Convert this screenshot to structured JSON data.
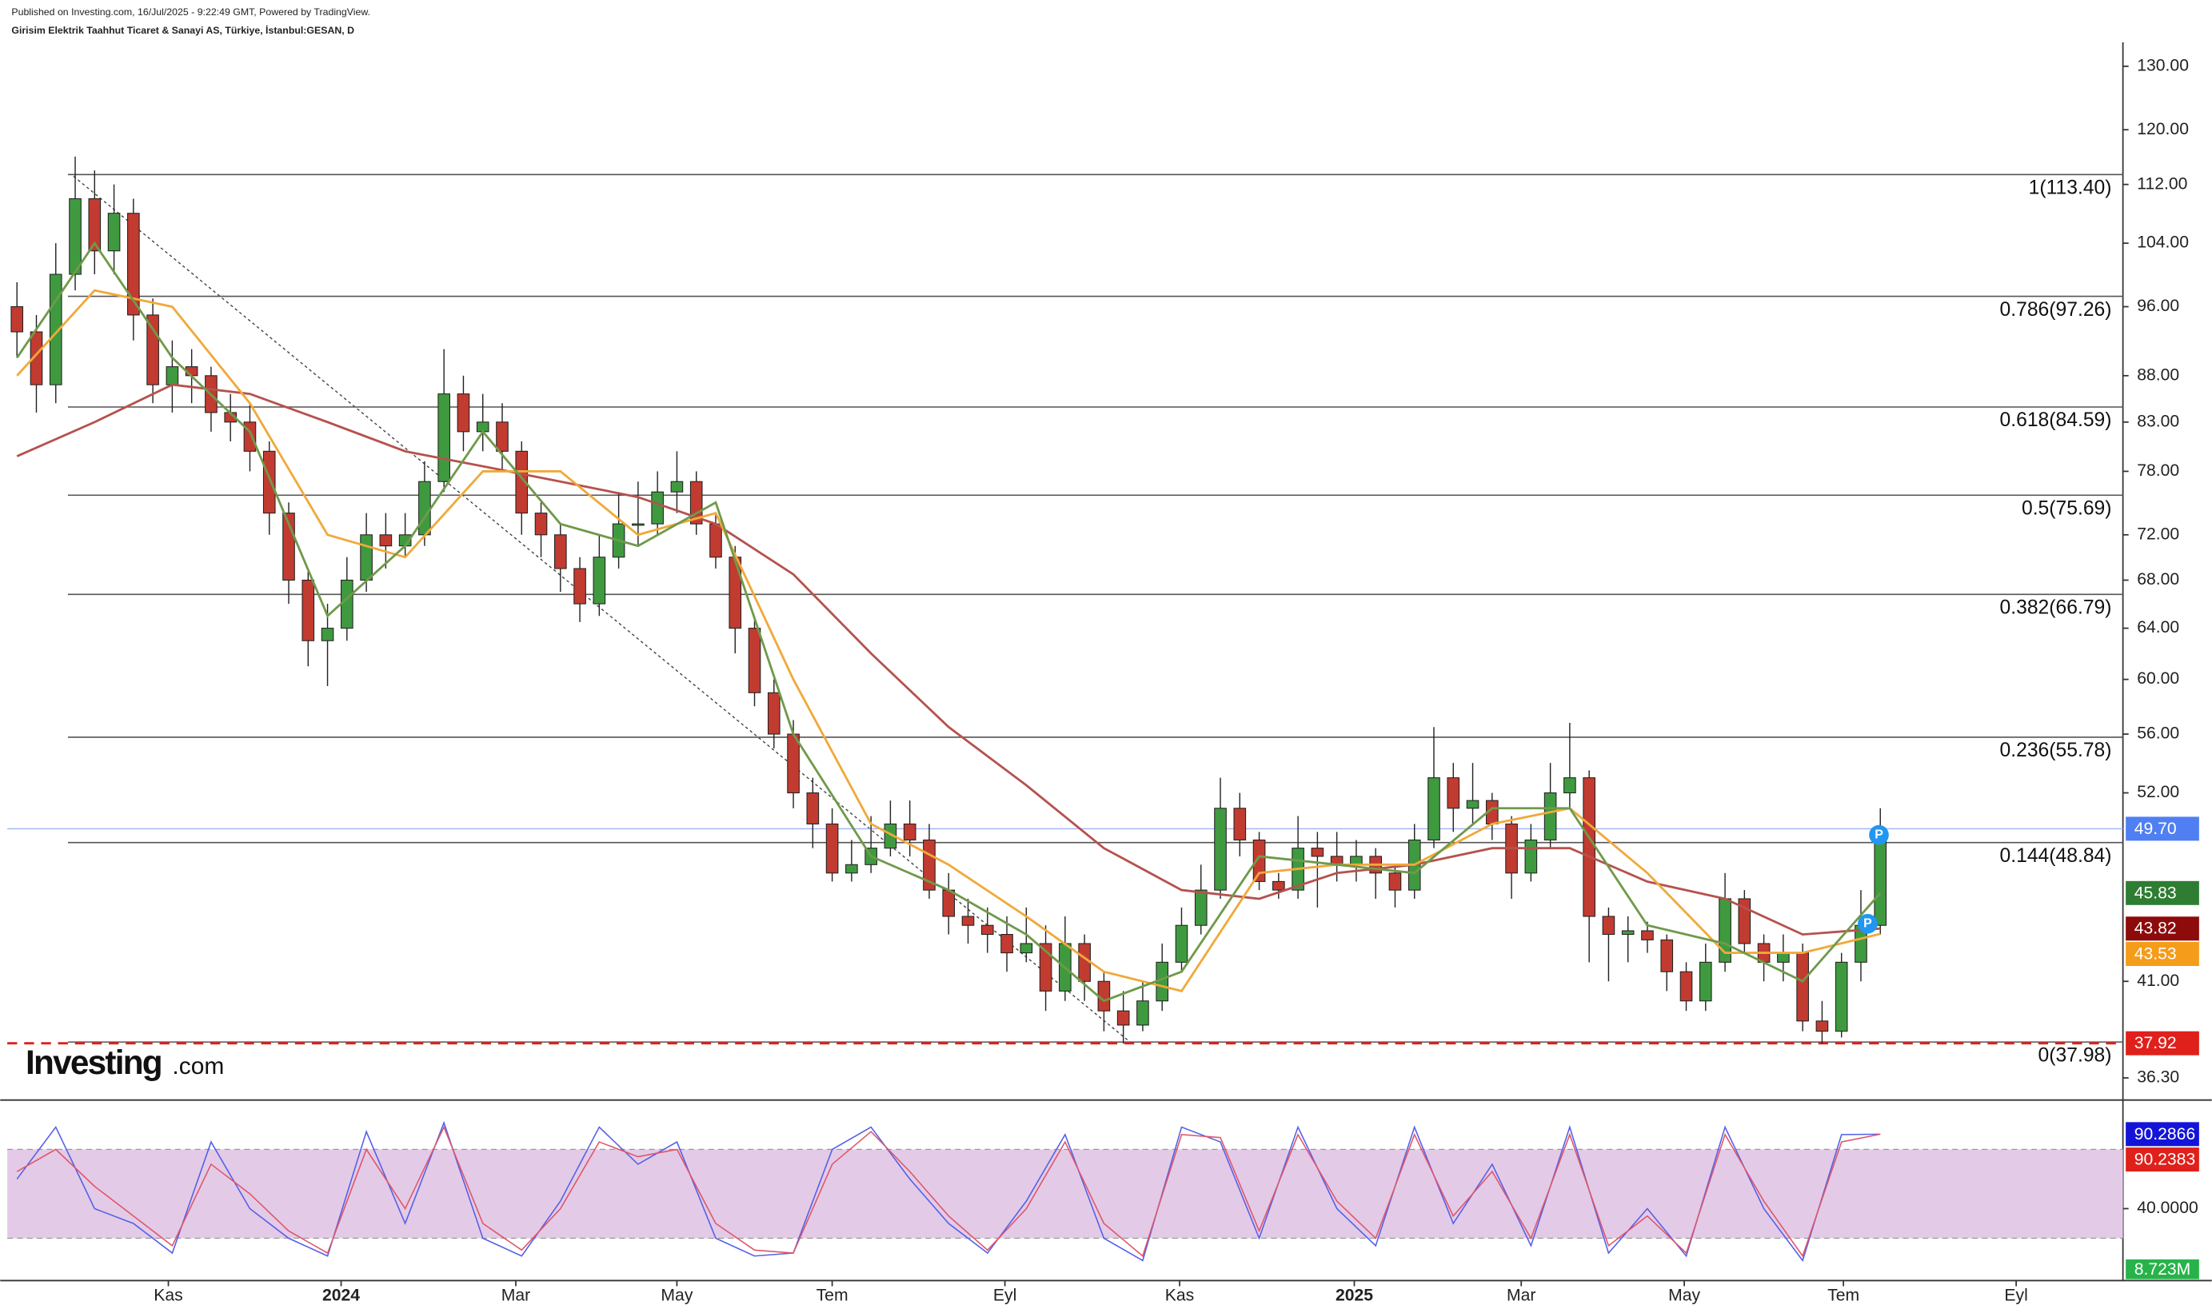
{
  "header": {
    "published": "Published on Investing.com, 16/Jul/2025 - 9:22:49 GMT, Powered by TradingView.",
    "instrument": "Girisim Elektrik Taahhut Ticaret & Sanayi AS, Türkiye, İstanbul:GESAN, D"
  },
  "logo": {
    "name": "Investing",
    "suffix": ".com"
  },
  "markers": [
    {
      "label": "P"
    },
    {
      "label": "P"
    }
  ],
  "chart_data": {
    "type": "candlestick",
    "log_scale": true,
    "xlim": [
      0,
      109
    ],
    "xticks": [
      {
        "value": 8.3,
        "label": "Kas"
      },
      {
        "value": 17.2,
        "label": "2024"
      },
      {
        "value": 26.2,
        "label": "Mar"
      },
      {
        "value": 34.5,
        "label": "May"
      },
      {
        "value": 42.5,
        "label": "Tem"
      },
      {
        "value": 51.4,
        "label": "Eyl"
      },
      {
        "value": 60.4,
        "label": "Kas"
      },
      {
        "value": 69.4,
        "label": "2025"
      },
      {
        "value": 78.0,
        "label": "Mar"
      },
      {
        "value": 86.4,
        "label": "May"
      },
      {
        "value": 94.6,
        "label": "Tem"
      },
      {
        "value": 103.5,
        "label": "Eyl"
      }
    ],
    "ylim": [
      35.3,
      132.8
    ],
    "yticks": [
      {
        "value": 130,
        "label": "130.00"
      },
      {
        "value": 120,
        "label": "120.00"
      },
      {
        "value": 112,
        "label": "112.00"
      },
      {
        "value": 104,
        "label": "104.00"
      },
      {
        "value": 96,
        "label": "96.00"
      },
      {
        "value": 88,
        "label": "88.00"
      },
      {
        "value": 83,
        "label": "83.00"
      },
      {
        "value": 78,
        "label": "78.00"
      },
      {
        "value": 72,
        "label": "72.00"
      },
      {
        "value": 68,
        "label": "68.00"
      },
      {
        "value": 64,
        "label": "64.00"
      },
      {
        "value": 60,
        "label": "60.00"
      },
      {
        "value": 56,
        "label": "56.00"
      },
      {
        "value": 52,
        "label": "52.00"
      },
      {
        "value": 41,
        "label": "41.00"
      },
      {
        "value": 36.3,
        "label": "36.30"
      }
    ],
    "up_color": "#3f9a3f",
    "down_color": "#c23b30",
    "open": [
      96,
      93,
      87,
      100,
      110,
      103,
      108,
      95,
      87,
      89,
      88,
      84,
      83,
      80,
      74,
      68,
      63,
      64,
      68,
      72,
      71,
      72,
      77,
      86,
      82,
      83,
      80,
      74,
      72,
      69,
      66,
      70,
      73,
      73,
      76,
      77,
      73,
      70,
      64,
      59,
      56,
      52,
      50,
      47,
      47.5,
      48.5,
      50,
      49,
      46,
      44.5,
      44,
      43.5,
      42.5,
      43,
      40.5,
      43,
      41,
      39.5,
      38.8,
      40,
      42,
      44,
      46,
      51,
      49,
      46.5,
      46,
      48.5,
      48,
      47.5,
      48,
      47,
      46,
      49,
      53,
      51,
      51.5,
      50,
      47,
      49,
      52,
      53,
      44.5,
      43.5,
      43.7,
      43.2,
      41.5,
      40,
      42,
      45.5,
      43,
      42,
      42.5,
      39,
      38.5,
      42,
      44
    ],
    "high": [
      99,
      95,
      104,
      116,
      114,
      112,
      110,
      97,
      92,
      91,
      89,
      86,
      85,
      81,
      75,
      69,
      66,
      70,
      74,
      74,
      74,
      79,
      91,
      88,
      86,
      85,
      81,
      75,
      73,
      70,
      72,
      76,
      77,
      78,
      80,
      78,
      74,
      71,
      65,
      60,
      57,
      53,
      51,
      49,
      50.5,
      51.5,
      51.5,
      50,
      47,
      45.5,
      45,
      44.5,
      45,
      44,
      44.5,
      43.5,
      41.5,
      40.5,
      41,
      43,
      45,
      47.5,
      53,
      52,
      49.5,
      47,
      50.5,
      49.5,
      49.5,
      49,
      48.5,
      47.5,
      50,
      56.5,
      54,
      54,
      52,
      50.5,
      50,
      54,
      56.8,
      53.5,
      45,
      44.5,
      44.2,
      43.5,
      42,
      43,
      47,
      46,
      43.5,
      43.5,
      43,
      40,
      42.5,
      46,
      51
    ],
    "low": [
      90,
      84,
      85,
      98,
      100,
      100,
      92,
      85,
      84,
      85,
      82,
      81,
      78,
      72,
      66,
      61,
      59.5,
      63,
      67,
      69,
      70,
      71,
      76,
      80,
      80,
      78,
      72,
      70,
      67,
      64.5,
      65,
      69,
      71,
      72,
      74,
      72,
      69,
      62,
      58,
      55,
      51,
      48.5,
      46.5,
      46.5,
      47,
      48,
      48,
      45.5,
      43.5,
      43,
      42.5,
      41.5,
      42,
      39.5,
      40,
      40,
      38.5,
      37.9,
      38.5,
      39.5,
      41.5,
      43.5,
      45.5,
      48,
      46,
      45.5,
      45.5,
      45,
      46.5,
      46.5,
      45.5,
      45,
      45.5,
      48.5,
      49.5,
      50,
      49,
      45.5,
      46.5,
      48.5,
      51,
      42,
      41,
      42,
      42.5,
      40.5,
      39.5,
      39.5,
      41.5,
      42.5,
      41,
      41,
      38.5,
      37.9,
      38.2,
      41,
      43.5
    ],
    "close": [
      93,
      87,
      100,
      110,
      103,
      108,
      95,
      87,
      89,
      88,
      84,
      83,
      80,
      74,
      68,
      63,
      64,
      68,
      72,
      71,
      72,
      77,
      86,
      82,
      83,
      80,
      74,
      72,
      69,
      66,
      70,
      73,
      73,
      76,
      77,
      73,
      70,
      64,
      59,
      56,
      52,
      50,
      47,
      47.5,
      48.5,
      50,
      49,
      46,
      44.5,
      44,
      43.5,
      42.5,
      43,
      40.5,
      43,
      41,
      39.5,
      38.8,
      40,
      42,
      44,
      46,
      51,
      49,
      46.5,
      46,
      48.5,
      48,
      47.5,
      48,
      47,
      46,
      49,
      53,
      51,
      51.5,
      50,
      47,
      49,
      52,
      53,
      44.5,
      43.5,
      43.7,
      43.2,
      41.5,
      40,
      42,
      45.5,
      43,
      42,
      42.5,
      39,
      38.5,
      42,
      44,
      49.7
    ],
    "overlays": [
      {
        "color": "#b5524d",
        "x": [
          0,
          4,
          8,
          12,
          16,
          20,
          24,
          28,
          32,
          36,
          40,
          44,
          48,
          52,
          56,
          60,
          64,
          68,
          72,
          76,
          80,
          84,
          88,
          92,
          96
        ],
        "values": [
          79.5,
          83,
          87,
          86,
          83,
          80,
          78.5,
          77,
          75.5,
          73,
          68.5,
          62,
          56.5,
          52.5,
          48.5,
          46,
          45.5,
          47,
          47.5,
          48.5,
          48.5,
          46.5,
          45.5,
          43.5,
          43.82
        ]
      },
      {
        "color": "#f0a93a",
        "x": [
          0,
          4,
          8,
          12,
          16,
          20,
          24,
          28,
          32,
          36,
          40,
          44,
          48,
          52,
          56,
          60,
          64,
          68,
          72,
          76,
          80,
          84,
          88,
          92,
          96
        ],
        "values": [
          88,
          98,
          96,
          85,
          72,
          70,
          78,
          78,
          72,
          74,
          60,
          50,
          47.5,
          44.5,
          41.5,
          40.5,
          47,
          47.5,
          47.5,
          50,
          51,
          47,
          42.5,
          42.5,
          43.53
        ]
      },
      {
        "color": "#6f9a4a",
        "x": [
          0,
          4,
          8,
          12,
          16,
          20,
          24,
          28,
          32,
          36,
          40,
          44,
          48,
          52,
          56,
          60,
          64,
          68,
          72,
          76,
          80,
          84,
          88,
          92,
          96
        ],
        "values": [
          90,
          104,
          90,
          82,
          65,
          71,
          82,
          73,
          71,
          75,
          56,
          48,
          46,
          43.5,
          40,
          41.5,
          48,
          47.5,
          47,
          51,
          51,
          44,
          43,
          41,
          45.83
        ]
      }
    ],
    "fib_levels": [
      {
        "value": 113.4,
        "label": "1(113.40)"
      },
      {
        "value": 97.26,
        "label": "0.786(97.26)"
      },
      {
        "value": 84.59,
        "label": "0.618(84.59)"
      },
      {
        "value": 75.69,
        "label": "0.5(75.69)"
      },
      {
        "value": 66.79,
        "label": "0.382(66.79)"
      },
      {
        "value": 55.78,
        "label": "0.236(55.78)"
      },
      {
        "value": 48.84,
        "label": "0.144(48.84)"
      },
      {
        "value": 37.98,
        "label": "0(37.98)"
      }
    ],
    "price_tags": [
      {
        "value": 49.7,
        "label": "49.70",
        "color": "#4f7ff2"
      },
      {
        "value": 45.83,
        "label": "45.83",
        "color": "#2e7d32"
      },
      {
        "value": 43.82,
        "label": "43.82",
        "color": "#8e0b0b"
      },
      {
        "value": 43.53,
        "label": "43.53",
        "color": "#f59c1a"
      },
      {
        "value": 37.92,
        "label": "37.92",
        "color": "#e0201b"
      }
    ],
    "last_price_line": 49.7,
    "support_line": 37.92,
    "stochastic": {
      "ylim": [
        -5.7,
        111.4
      ],
      "band": [
        20,
        80
      ],
      "yticks": [
        {
          "value": 40,
          "label": "40.0000"
        }
      ],
      "x": [
        0,
        2,
        4,
        6,
        8,
        10,
        12,
        14,
        16,
        18,
        20,
        22,
        24,
        26,
        28,
        30,
        32,
        34,
        36,
        38,
        40,
        42,
        44,
        46,
        48,
        50,
        52,
        54,
        56,
        58,
        60,
        62,
        64,
        66,
        68,
        70,
        72,
        74,
        76,
        78,
        80,
        82,
        84,
        86,
        88,
        90,
        92,
        94,
        96
      ],
      "series": [
        {
          "color": "#5560e8",
          "values": [
            60,
            95,
            40,
            30,
            10,
            85,
            40,
            20,
            8,
            92,
            30,
            98,
            20,
            8,
            45,
            95,
            70,
            85,
            20,
            8,
            10,
            80,
            95,
            60,
            30,
            10,
            45,
            90,
            20,
            5,
            95,
            85,
            20,
            95,
            40,
            15,
            95,
            30,
            70,
            15,
            95,
            10,
            40,
            8,
            95,
            40,
            5,
            90,
            90.2866
          ]
        },
        {
          "color": "#e0566a",
          "values": [
            65,
            80,
            55,
            35,
            15,
            70,
            50,
            25,
            10,
            80,
            40,
            95,
            30,
            12,
            40,
            85,
            75,
            80,
            30,
            12,
            10,
            70,
            92,
            65,
            35,
            12,
            40,
            85,
            30,
            8,
            90,
            88,
            25,
            90,
            45,
            20,
            90,
            35,
            65,
            20,
            90,
            15,
            35,
            10,
            90,
            45,
            8,
            85,
            90.2383
          ]
        }
      ],
      "tags": [
        {
          "value": 90.2866,
          "label": "90.2866",
          "color": "#1414d8"
        },
        {
          "value": 90.2383,
          "label": "90.2383",
          "color": "#e0201b"
        }
      ]
    },
    "volume_tag": {
      "value": 8723000,
      "label": "8.723M",
      "color": "#27b34a"
    }
  }
}
